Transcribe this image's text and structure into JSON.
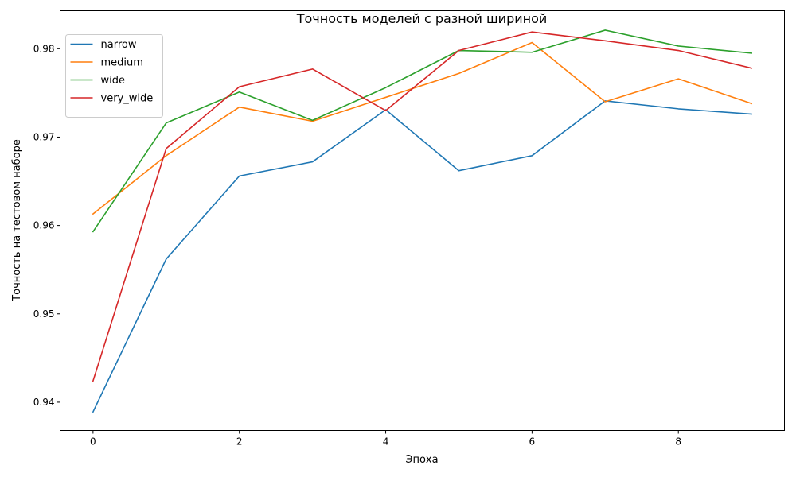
{
  "chart_data": {
    "type": "line",
    "title": "Точность моделей с разной шириной",
    "xlabel": "Эпоха",
    "ylabel": "Точность на тестовом наборе",
    "x": [
      0,
      1,
      2,
      3,
      4,
      5,
      6,
      7,
      8,
      9
    ],
    "xlim": [
      -0.45,
      9.45
    ],
    "ylim": [
      0.9368,
      0.9843
    ],
    "x_ticks": [
      0,
      2,
      4,
      6,
      8
    ],
    "x_tick_labels": [
      "0",
      "2",
      "4",
      "6",
      "8"
    ],
    "y_ticks": [
      0.94,
      0.95,
      0.96,
      0.97,
      0.98
    ],
    "y_tick_labels": [
      "0.94",
      "0.95",
      "0.96",
      "0.97",
      "0.98"
    ],
    "grid": false,
    "legend_position": "top-left",
    "series": [
      {
        "name": "narrow",
        "color": "#1f77b4",
        "values": [
          0.9389,
          0.9562,
          0.9656,
          0.9672,
          0.9731,
          0.9662,
          0.9679,
          0.9741,
          0.9732,
          0.9726
        ]
      },
      {
        "name": "medium",
        "color": "#ff7f0e",
        "values": [
          0.9613,
          0.9679,
          0.9734,
          0.9718,
          0.9745,
          0.9772,
          0.9807,
          0.974,
          0.9766,
          0.9738
        ]
      },
      {
        "name": "wide",
        "color": "#2ca02c",
        "values": [
          0.9593,
          0.9716,
          0.9751,
          0.9719,
          0.9756,
          0.9798,
          0.9796,
          0.9821,
          0.9803,
          0.9795
        ]
      },
      {
        "name": "very_wide",
        "color": "#d62728",
        "values": [
          0.9424,
          0.9687,
          0.9757,
          0.9777,
          0.973,
          0.9798,
          0.9819,
          0.9809,
          0.9798,
          0.9778
        ]
      }
    ]
  }
}
